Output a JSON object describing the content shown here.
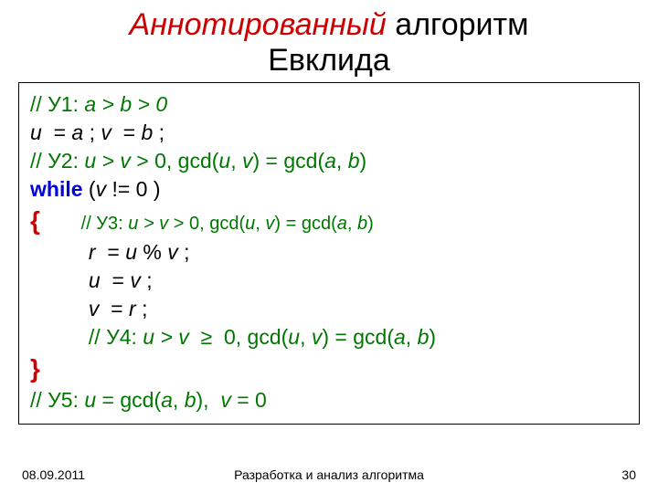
{
  "title": {
    "red": "Аннотированный",
    "black1": "  алгоритм",
    "black2": "Евклида"
  },
  "code": {
    "l1_pre": "// У1: ",
    "l1_ab": "a > b > 0",
    "l2_u": "u",
    "l2_eq1": "  = ",
    "l2_a": "a",
    "l2_semi1": " ; ",
    "l2_v": "v",
    "l2_eq2": "  = ",
    "l2_b": "b",
    "l2_semi2": " ;",
    "l3_pre": "// У2: ",
    "l3_uv": "u > v",
    "l3_mid": " > 0, gcd(",
    "l3_u2": "u",
    "l3_c1": ", ",
    "l3_v2": "v",
    "l3_eq": ") = gcd(",
    "l3_a": "a",
    "l3_c2": ", ",
    "l3_b": "b",
    "l3_end": ")",
    "l4_while": "while",
    "l4_open": " (",
    "l4_v": "v",
    "l4_rest": " != 0 )",
    "l5_brace": "{",
    "l5_sp": "       ",
    "l5_pre": "// У3: ",
    "l5_uv": "u > v",
    "l5_mid": " > 0, gcd(",
    "l5_u2": "u",
    "l5_c1": ", ",
    "l5_v2": "v",
    "l5_eq": ") = gcd(",
    "l5_a": "a",
    "l5_c2": ", ",
    "l5_b": "b",
    "l5_end": ")",
    "l6_sp": "          ",
    "l6_r": "r",
    "l6_eq": "  = ",
    "l6_u": "u",
    "l6_mod": " % ",
    "l6_v": "v",
    "l6_end": " ;",
    "l7_sp": "          ",
    "l7_u": "u",
    "l7_eq": "  = ",
    "l7_v": "v",
    "l7_end": " ;",
    "l8_sp": "          ",
    "l8_v": "v",
    "l8_eq": "  = ",
    "l8_r": "r",
    "l8_end": " ;",
    "l9_sp": "          ",
    "l9_pre": "// У4: ",
    "l9_uv": "u > v",
    "l9_mid": "  ≥  0, gcd(",
    "l9_u2": "u",
    "l9_c1": ", ",
    "l9_v2": "v",
    "l9_eq": ") = gcd(",
    "l9_a": "a",
    "l9_c2": ", ",
    "l9_b": "b",
    "l9_end": ")",
    "l10_brace": "}",
    "l11_pre": "// У5: ",
    "l11_u": "u",
    "l11_eq": " = gcd(",
    "l11_a": "a",
    "l11_c": ", ",
    "l11_b": "b",
    "l11_mid": "),  ",
    "l11_v": "v",
    "l11_zero": " = 0"
  },
  "footer": {
    "date": "08.09.2011",
    "center": "Разработка и анализ алгоритма",
    "page": "30"
  },
  "colors": {
    "title_red": "#cc0000",
    "comment_green": "#007700",
    "keyword_blue": "#0000dd",
    "brace_red": "#cc0000",
    "background": "#ffffff"
  },
  "fonts": {
    "title_size": 34,
    "code_size": 23,
    "indent_comment_size": 20,
    "footer_size": 14
  }
}
